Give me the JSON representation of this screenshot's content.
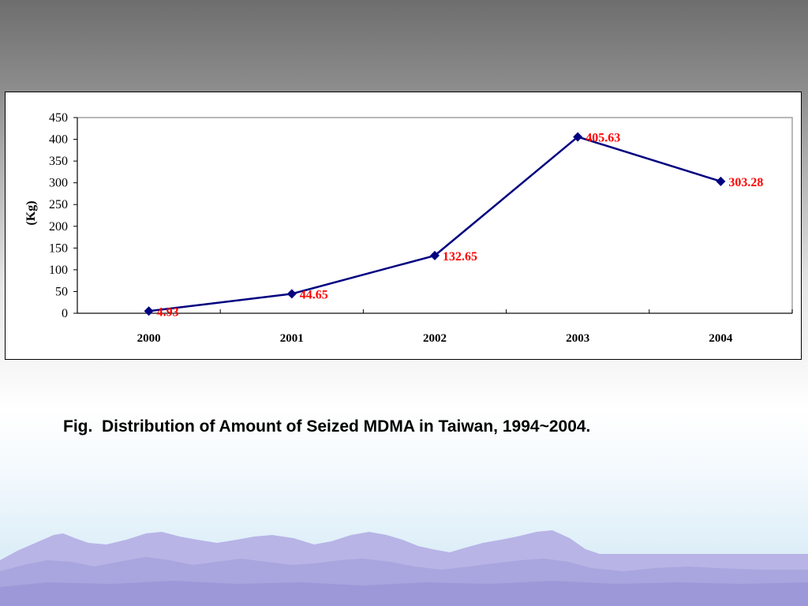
{
  "slide": {
    "caption": "Fig.  Distribution of Amount of Seized MDMA in Taiwan, 1994~2004."
  },
  "chart_data": {
    "type": "line",
    "categories": [
      "2000",
      "2001",
      "2002",
      "2003",
      "2004"
    ],
    "series": [
      {
        "values": [
          4.93,
          44.65,
          132.65,
          405.63,
          303.28
        ],
        "data_labels": [
          "4.93",
          "44.65",
          "132.65",
          "405.63",
          "303.28"
        ],
        "color": "#000080",
        "marker": "diamond"
      }
    ],
    "xlabel": "",
    "ylabel": "(Kg)",
    "ylim": [
      0,
      450
    ],
    "yticks": [
      0,
      50,
      100,
      150,
      200,
      250,
      300,
      350,
      400,
      450
    ],
    "grid": false,
    "legend": "none",
    "label_color": "#ff0000",
    "plot_border_color": "#a0a0a0"
  }
}
